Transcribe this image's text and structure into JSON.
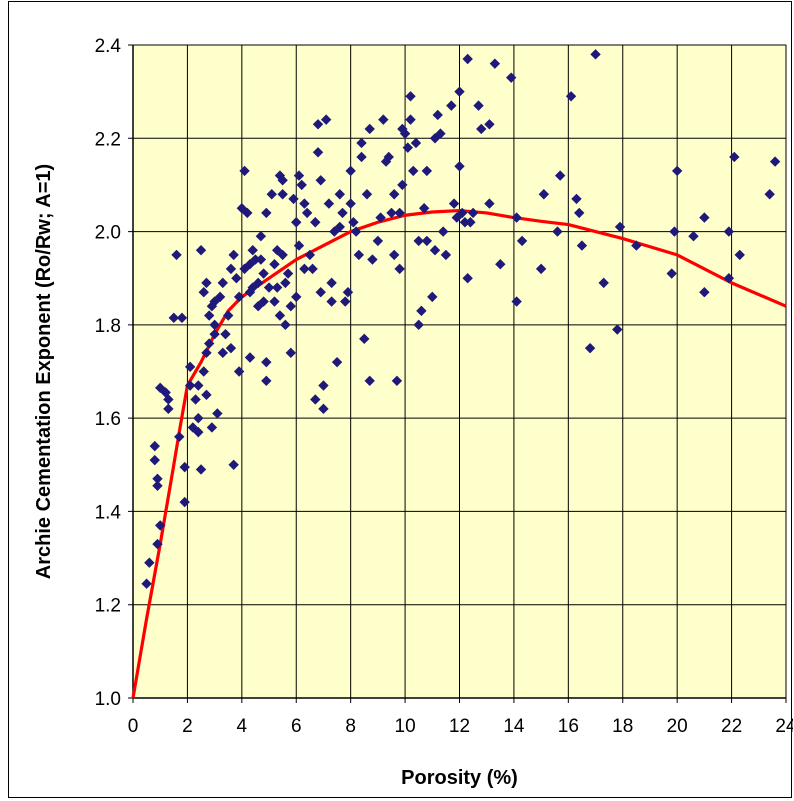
{
  "colors": {
    "plot_background": "#FFFFCC",
    "grid": "#000000",
    "points": "#1F1A7A",
    "trend_line": "#FF0000"
  },
  "chart_data": {
    "type": "scatter",
    "xlabel": "Porosity (%)",
    "ylabel": "Archie Cementation Exponent (Ro/Rw; A=1)",
    "xlim": [
      0,
      24
    ],
    "ylim": [
      1.0,
      2.4
    ],
    "x_ticks": [
      "0",
      "2",
      "4",
      "6",
      "8",
      "10",
      "12",
      "14",
      "16",
      "18",
      "20",
      "22",
      "24"
    ],
    "y_ticks": [
      "1.0",
      "1.2",
      "1.4",
      "1.6",
      "1.8",
      "2.0",
      "2.2",
      "2.4"
    ],
    "grid": true,
    "legend": "none",
    "series": [
      {
        "type": "scatter",
        "marker": "diamond",
        "points": [
          [
            0.5,
            1.245
          ],
          [
            0.6,
            1.29
          ],
          [
            0.8,
            1.54
          ],
          [
            0.8,
            1.51
          ],
          [
            0.9,
            1.47
          ],
          [
            0.9,
            1.455
          ],
          [
            0.9,
            1.33
          ],
          [
            1.0,
            1.37
          ],
          [
            1.0,
            1.665
          ],
          [
            1.2,
            1.655
          ],
          [
            1.3,
            1.62
          ],
          [
            1.3,
            1.64
          ],
          [
            1.5,
            1.815
          ],
          [
            1.6,
            1.95
          ],
          [
            1.7,
            1.56
          ],
          [
            1.8,
            1.815
          ],
          [
            1.9,
            1.42
          ],
          [
            1.9,
            1.495
          ],
          [
            2.1,
            1.67
          ],
          [
            2.1,
            1.71
          ],
          [
            2.2,
            1.58
          ],
          [
            2.3,
            1.64
          ],
          [
            2.4,
            1.67
          ],
          [
            2.4,
            1.6
          ],
          [
            2.4,
            1.57
          ],
          [
            2.5,
            1.96
          ],
          [
            2.5,
            1.49
          ],
          [
            2.6,
            1.7
          ],
          [
            2.6,
            1.87
          ],
          [
            2.7,
            1.89
          ],
          [
            2.7,
            1.74
          ],
          [
            2.7,
            1.65
          ],
          [
            2.8,
            1.82
          ],
          [
            2.8,
            1.76
          ],
          [
            2.9,
            1.84
          ],
          [
            2.9,
            1.58
          ],
          [
            3.0,
            1.85
          ],
          [
            3.0,
            1.8
          ],
          [
            3.0,
            1.78
          ],
          [
            3.1,
            1.61
          ],
          [
            3.2,
            1.86
          ],
          [
            3.3,
            1.74
          ],
          [
            3.3,
            1.89
          ],
          [
            3.4,
            1.78
          ],
          [
            3.5,
            1.82
          ],
          [
            3.6,
            1.92
          ],
          [
            3.6,
            1.75
          ],
          [
            3.7,
            1.5
          ],
          [
            3.7,
            1.95
          ],
          [
            3.8,
            1.9
          ],
          [
            3.9,
            1.7
          ],
          [
            3.9,
            1.86
          ],
          [
            4.0,
            2.05
          ],
          [
            4.1,
            1.92
          ],
          [
            4.1,
            2.13
          ],
          [
            4.2,
            2.04
          ],
          [
            4.3,
            1.93
          ],
          [
            4.3,
            1.87
          ],
          [
            4.3,
            1.73
          ],
          [
            4.4,
            1.88
          ],
          [
            4.4,
            1.96
          ],
          [
            4.5,
            1.94
          ],
          [
            4.6,
            1.89
          ],
          [
            4.6,
            1.84
          ],
          [
            4.7,
            1.99
          ],
          [
            4.7,
            1.94
          ],
          [
            4.8,
            1.91
          ],
          [
            4.8,
            1.85
          ],
          [
            4.9,
            2.04
          ],
          [
            4.9,
            1.72
          ],
          [
            4.9,
            1.68
          ],
          [
            5.0,
            1.88
          ],
          [
            5.1,
            2.08
          ],
          [
            5.2,
            1.85
          ],
          [
            5.2,
            1.93
          ],
          [
            5.3,
            1.96
          ],
          [
            5.3,
            1.88
          ],
          [
            5.4,
            2.12
          ],
          [
            5.4,
            1.82
          ],
          [
            5.5,
            2.11
          ],
          [
            5.5,
            2.08
          ],
          [
            5.5,
            1.95
          ],
          [
            5.6,
            1.89
          ],
          [
            5.6,
            1.8
          ],
          [
            5.7,
            1.91
          ],
          [
            5.8,
            1.84
          ],
          [
            5.8,
            1.74
          ],
          [
            5.9,
            2.07
          ],
          [
            6.0,
            1.86
          ],
          [
            6.0,
            2.02
          ],
          [
            6.1,
            2.12
          ],
          [
            6.1,
            1.97
          ],
          [
            6.2,
            2.1
          ],
          [
            6.3,
            2.06
          ],
          [
            6.3,
            1.92
          ],
          [
            6.4,
            2.04
          ],
          [
            6.5,
            1.95
          ],
          [
            6.6,
            1.92
          ],
          [
            6.7,
            2.02
          ],
          [
            6.7,
            1.64
          ],
          [
            6.8,
            2.17
          ],
          [
            6.8,
            2.23
          ],
          [
            6.9,
            2.11
          ],
          [
            6.9,
            1.87
          ],
          [
            7.0,
            1.62
          ],
          [
            7.0,
            1.67
          ],
          [
            7.1,
            2.24
          ],
          [
            7.2,
            2.06
          ],
          [
            7.3,
            1.89
          ],
          [
            7.3,
            1.85
          ],
          [
            7.4,
            2.0
          ],
          [
            7.5,
            1.72
          ],
          [
            7.6,
            2.08
          ],
          [
            7.6,
            2.01
          ],
          [
            7.7,
            2.04
          ],
          [
            7.8,
            1.85
          ],
          [
            7.9,
            1.87
          ],
          [
            8.0,
            2.13
          ],
          [
            8.0,
            2.06
          ],
          [
            8.1,
            2.02
          ],
          [
            8.2,
            2.0
          ],
          [
            8.3,
            1.95
          ],
          [
            8.4,
            2.19
          ],
          [
            8.4,
            2.16
          ],
          [
            8.5,
            1.77
          ],
          [
            8.6,
            2.08
          ],
          [
            8.7,
            1.68
          ],
          [
            8.7,
            2.22
          ],
          [
            8.8,
            1.94
          ],
          [
            9.0,
            1.98
          ],
          [
            9.1,
            2.03
          ],
          [
            9.2,
            2.24
          ],
          [
            9.3,
            2.15
          ],
          [
            9.4,
            2.16
          ],
          [
            9.5,
            2.04
          ],
          [
            9.6,
            2.08
          ],
          [
            9.6,
            1.95
          ],
          [
            9.7,
            1.68
          ],
          [
            9.8,
            2.04
          ],
          [
            9.8,
            1.92
          ],
          [
            9.9,
            2.22
          ],
          [
            9.9,
            2.1
          ],
          [
            10.0,
            2.21
          ],
          [
            10.1,
            2.18
          ],
          [
            10.2,
            2.24
          ],
          [
            10.2,
            2.29
          ],
          [
            10.3,
            2.13
          ],
          [
            10.4,
            2.19
          ],
          [
            10.5,
            1.98
          ],
          [
            10.5,
            1.8
          ],
          [
            10.6,
            1.83
          ],
          [
            10.7,
            2.05
          ],
          [
            10.8,
            1.98
          ],
          [
            10.8,
            2.13
          ],
          [
            11.0,
            1.86
          ],
          [
            11.1,
            1.96
          ],
          [
            11.1,
            2.2
          ],
          [
            11.2,
            2.25
          ],
          [
            11.3,
            2.21
          ],
          [
            11.4,
            2.0
          ],
          [
            11.5,
            1.95
          ],
          [
            11.7,
            2.27
          ],
          [
            11.8,
            2.06
          ],
          [
            11.9,
            2.03
          ],
          [
            12.0,
            2.3
          ],
          [
            12.0,
            2.14
          ],
          [
            12.1,
            2.04
          ],
          [
            12.2,
            2.02
          ],
          [
            12.3,
            2.37
          ],
          [
            12.3,
            1.9
          ],
          [
            12.4,
            2.02
          ],
          [
            12.5,
            2.04
          ],
          [
            12.7,
            2.27
          ],
          [
            12.8,
            2.22
          ],
          [
            13.1,
            2.06
          ],
          [
            13.1,
            2.23
          ],
          [
            13.3,
            2.36
          ],
          [
            13.5,
            1.93
          ],
          [
            13.9,
            2.33
          ],
          [
            14.1,
            2.03
          ],
          [
            14.1,
            1.85
          ],
          [
            14.3,
            1.98
          ],
          [
            15.0,
            1.92
          ],
          [
            15.1,
            2.08
          ],
          [
            15.6,
            2.0
          ],
          [
            15.7,
            2.12
          ],
          [
            16.1,
            2.29
          ],
          [
            16.3,
            2.07
          ],
          [
            16.4,
            2.04
          ],
          [
            16.5,
            1.97
          ],
          [
            16.8,
            1.75
          ],
          [
            17.0,
            2.38
          ],
          [
            17.3,
            1.89
          ],
          [
            17.8,
            1.79
          ],
          [
            17.9,
            2.01
          ],
          [
            18.5,
            1.97
          ],
          [
            19.8,
            1.91
          ],
          [
            19.9,
            2.0
          ],
          [
            20.0,
            2.13
          ],
          [
            20.6,
            1.99
          ],
          [
            21.0,
            1.87
          ],
          [
            21.0,
            2.03
          ],
          [
            21.9,
            2.0
          ],
          [
            21.9,
            1.9
          ],
          [
            22.1,
            2.16
          ],
          [
            22.3,
            1.95
          ],
          [
            23.4,
            2.08
          ],
          [
            23.6,
            2.15
          ]
        ]
      },
      {
        "type": "line",
        "points": [
          [
            0,
            1.0
          ],
          [
            0.5,
            1.17
          ],
          [
            1.0,
            1.33
          ],
          [
            1.5,
            1.5
          ],
          [
            1.7,
            1.57
          ],
          [
            2.0,
            1.67
          ],
          [
            2.5,
            1.72
          ],
          [
            3.0,
            1.78
          ],
          [
            3.5,
            1.83
          ],
          [
            4.0,
            1.86
          ],
          [
            5.0,
            1.9
          ],
          [
            6.0,
            1.94
          ],
          [
            7.0,
            1.97
          ],
          [
            8.0,
            2.0
          ],
          [
            9.0,
            2.02
          ],
          [
            10.0,
            2.035
          ],
          [
            11.0,
            2.042
          ],
          [
            12.0,
            2.045
          ],
          [
            13.0,
            2.04
          ],
          [
            14.0,
            2.03
          ],
          [
            15.0,
            2.022
          ],
          [
            16.0,
            2.015
          ],
          [
            18.0,
            1.985
          ],
          [
            20.0,
            1.95
          ],
          [
            22.0,
            1.89
          ],
          [
            24.0,
            1.84
          ]
        ]
      }
    ]
  }
}
